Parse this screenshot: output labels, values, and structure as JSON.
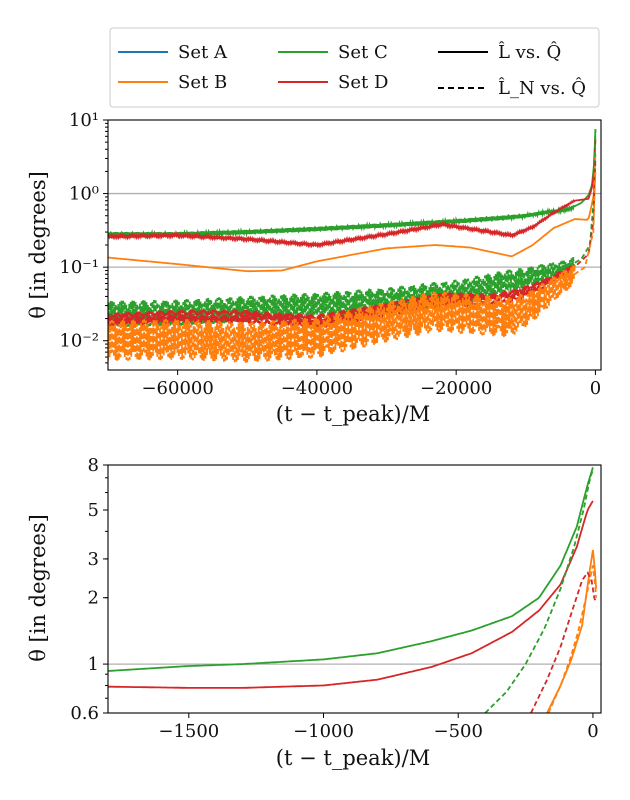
{
  "figure": {
    "legend": {
      "entries": [
        {
          "label": "Set A",
          "color": "#1f77b4",
          "style": "solid"
        },
        {
          "label": "Set B",
          "color": "#ff7f0e",
          "style": "solid"
        },
        {
          "label": "Set C",
          "color": "#2ca02c",
          "style": "solid"
        },
        {
          "label": "Set D",
          "color": "#d62728",
          "style": "solid"
        },
        {
          "label": "L̂ vs. Q̂",
          "color": "#000000",
          "style": "solid"
        },
        {
          "label": "L̂_N vs. Q̂",
          "color": "#000000",
          "style": "dashed"
        }
      ],
      "placement": "top, above first panel"
    }
  },
  "chart_data": [
    {
      "type": "line",
      "panel": "top",
      "xlabel": "(t − t_peak)/M",
      "ylabel": "θ [in degrees]",
      "yscale": "log",
      "xlim": [
        -70000,
        800
      ],
      "ylim": [
        0.004,
        10
      ],
      "xticks": [
        -60000,
        -40000,
        -20000,
        0
      ],
      "xtick_labels": [
        "−60000",
        "−40000",
        "−20000",
        "0"
      ],
      "yticks": [
        0.01,
        0.1,
        1,
        10
      ],
      "ytick_labels": [
        "10⁻²",
        "10⁻¹",
        "10⁰",
        "10¹"
      ],
      "reference_lines_y": [
        0.1,
        1
      ],
      "series": [
        {
          "name": "Set C",
          "style": "solid",
          "color": "#2ca02c",
          "x": [
            -70000,
            -60000,
            -50000,
            -40000,
            -30000,
            -20000,
            -13000,
            -10000,
            -7000,
            -4000,
            -2000,
            -1000,
            -500,
            -200,
            0
          ],
          "y": [
            0.28,
            0.28,
            0.3,
            0.33,
            0.37,
            0.42,
            0.47,
            0.5,
            0.56,
            0.6,
            0.75,
            0.95,
            1.3,
            2.5,
            7.5
          ],
          "oscillation": 0.03
        },
        {
          "name": "Set D",
          "style": "solid",
          "color": "#d62728",
          "x": [
            -70000,
            -60000,
            -50000,
            -40000,
            -30000,
            -22000,
            -15000,
            -12000,
            -9000,
            -6000,
            -3000,
            -1000,
            -500,
            -200,
            0
          ],
          "y": [
            0.26,
            0.27,
            0.24,
            0.2,
            0.28,
            0.38,
            0.3,
            0.27,
            0.35,
            0.55,
            0.8,
            0.85,
            1.2,
            2.0,
            5.5
          ],
          "oscillation": 0.015
        },
        {
          "name": "Set B",
          "style": "solid",
          "color": "#ff7f0e",
          "x": [
            -70000,
            -60000,
            -50000,
            -45000,
            -40000,
            -30000,
            -23000,
            -18000,
            -12000,
            -9000,
            -6000,
            -3000,
            -1000,
            -200,
            0
          ],
          "y": [
            0.135,
            0.11,
            0.088,
            0.09,
            0.12,
            0.18,
            0.2,
            0.185,
            0.14,
            0.2,
            0.34,
            0.45,
            0.44,
            1.0,
            3.5
          ],
          "oscillation": 0.0
        },
        {
          "name": "Set C",
          "style": "dashed",
          "color": "#2ca02c",
          "x": [
            -70000,
            -60000,
            -50000,
            -40000,
            -30000,
            -20000,
            -15000,
            -10000,
            -7000,
            -4000,
            -2000,
            -800,
            -200,
            0
          ],
          "y": [
            0.023,
            0.024,
            0.027,
            0.03,
            0.035,
            0.045,
            0.055,
            0.07,
            0.085,
            0.1,
            0.13,
            0.2,
            0.9,
            7.5
          ],
          "oscillation": 0.18
        },
        {
          "name": "Set D",
          "style": "dashed",
          "color": "#d62728",
          "x": [
            -70000,
            -60000,
            -50000,
            -40000,
            -30000,
            -22000,
            -15000,
            -12000,
            -9000,
            -6000,
            -3000,
            -1000,
            -300,
            0
          ],
          "y": [
            0.019,
            0.021,
            0.021,
            0.018,
            0.026,
            0.036,
            0.036,
            0.04,
            0.05,
            0.07,
            0.1,
            0.15,
            0.4,
            3.0
          ],
          "oscillation": 0.1
        },
        {
          "name": "Set B",
          "style": "dashed",
          "color": "#ff7f0e",
          "x": [
            -70000,
            -60000,
            -50000,
            -40000,
            -30000,
            -23000,
            -18000,
            -12000,
            -9000,
            -6000,
            -3000,
            -1500,
            -300,
            0
          ],
          "y": [
            0.01,
            0.0105,
            0.0095,
            0.011,
            0.018,
            0.025,
            0.023,
            0.021,
            0.03,
            0.05,
            0.08,
            0.1,
            0.3,
            2.2
          ],
          "oscillation": 0.28
        }
      ]
    },
    {
      "type": "line",
      "panel": "bottom",
      "xlabel": "(t − t_peak)/M",
      "ylabel": "θ [in degrees]",
      "yscale": "log",
      "xlim": [
        -1800,
        30
      ],
      "ylim": [
        0.6,
        8
      ],
      "xticks": [
        -1500,
        -1000,
        -500,
        0
      ],
      "xtick_labels": [
        "−1500",
        "−1000",
        "−500",
        "0"
      ],
      "yticks": [
        0.6,
        1,
        2,
        3,
        5,
        8
      ],
      "ytick_labels": [
        "0.6",
        "1",
        "2",
        "3",
        "5",
        "8"
      ],
      "reference_lines_y": [
        1
      ],
      "series": [
        {
          "name": "Set C",
          "style": "solid",
          "color": "#2ca02c",
          "x": [
            -1800,
            -1500,
            -1300,
            -1000,
            -800,
            -600,
            -450,
            -300,
            -200,
            -120,
            -60,
            -20,
            0
          ],
          "y": [
            0.93,
            0.98,
            1.0,
            1.05,
            1.12,
            1.27,
            1.42,
            1.65,
            2.0,
            2.8,
            4.2,
            6.5,
            7.8
          ]
        },
        {
          "name": "Set D",
          "style": "solid",
          "color": "#d62728",
          "x": [
            -1800,
            -1500,
            -1300,
            -1000,
            -800,
            -600,
            -450,
            -300,
            -200,
            -120,
            -60,
            -20,
            0
          ],
          "y": [
            0.79,
            0.78,
            0.78,
            0.8,
            0.85,
            0.97,
            1.12,
            1.4,
            1.75,
            2.3,
            3.4,
            5.0,
            5.5
          ]
        },
        {
          "name": "Set B",
          "style": "solid",
          "color": "#ff7f0e",
          "x": [
            -170,
            -120,
            -80,
            -40,
            -15,
            0,
            8,
            12
          ],
          "y": [
            0.6,
            0.8,
            1.05,
            1.5,
            2.5,
            3.3,
            2.6,
            2.2
          ]
        },
        {
          "name": "Set C",
          "style": "dashed",
          "color": "#2ca02c",
          "x": [
            -400,
            -320,
            -250,
            -180,
            -120,
            -70,
            -35,
            -10,
            0
          ],
          "y": [
            0.6,
            0.75,
            1.0,
            1.45,
            2.2,
            3.4,
            5.0,
            7.0,
            7.6
          ]
        },
        {
          "name": "Set D",
          "style": "dashed",
          "color": "#d62728",
          "x": [
            -230,
            -170,
            -120,
            -80,
            -40,
            -20,
            -5,
            5,
            12
          ],
          "y": [
            0.6,
            0.85,
            1.2,
            1.7,
            2.4,
            2.6,
            2.4,
            2.0,
            1.9
          ]
        },
        {
          "name": "Set B",
          "style": "dashed",
          "color": "#ff7f0e",
          "x": [
            -165,
            -120,
            -85,
            -55,
            -30,
            -12,
            0,
            8,
            12
          ],
          "y": [
            0.6,
            0.8,
            1.05,
            1.4,
            1.9,
            2.4,
            2.8,
            2.3,
            2.0
          ]
        }
      ]
    }
  ]
}
